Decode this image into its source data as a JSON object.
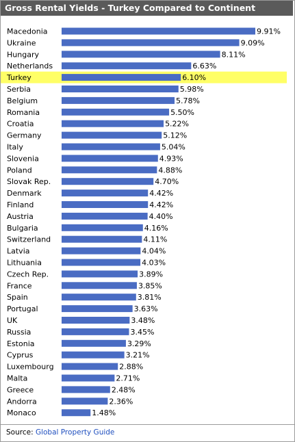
{
  "chart_data": {
    "type": "bar",
    "orientation": "horizontal",
    "title": "Gross Rental Yields - Turkey Compared to Continent",
    "highlight_category": "Turkey",
    "colors": {
      "bar": "#4a6cc3",
      "highlight": "#ffff66",
      "title_bg": "#5a5a5a"
    },
    "categories": [
      "Macedonia",
      "Ukraine",
      "Hungary",
      "Netherlands",
      "Turkey",
      "Serbia",
      "Belgium",
      "Romania",
      "Croatia",
      "Germany",
      "Italy",
      "Slovenia",
      "Poland",
      "Slovak Rep.",
      "Denmark",
      "Finland",
      "Austria",
      "Bulgaria",
      "Switzerland",
      "Latvia",
      "Lithuania",
      "Czech Rep.",
      "France",
      "Spain",
      "Portugal",
      "UK",
      "Russia",
      "Estonia",
      "Cyprus",
      "Luxembourg",
      "Malta",
      "Greece",
      "Andorra",
      "Monaco"
    ],
    "values": [
      9.91,
      9.09,
      8.11,
      6.63,
      6.1,
      5.98,
      5.78,
      5.5,
      5.22,
      5.12,
      5.04,
      4.93,
      4.88,
      4.7,
      4.42,
      4.42,
      4.4,
      4.16,
      4.11,
      4.04,
      4.03,
      3.89,
      3.85,
      3.81,
      3.63,
      3.48,
      3.45,
      3.29,
      3.21,
      2.88,
      2.71,
      2.48,
      2.36,
      1.48
    ],
    "labels": [
      "9.91%",
      "9.09%",
      "8.11%",
      "6.63%",
      "6.10%",
      "5.98%",
      "5.78%",
      "5.50%",
      "5.22%",
      "5.12%",
      "5.04%",
      "4.93%",
      "4.88%",
      "4.70%",
      "4.42%",
      "4.42%",
      "4.40%",
      "4.16%",
      "4.11%",
      "4.04%",
      "4.03%",
      "3.89%",
      "3.85%",
      "3.81%",
      "3.63%",
      "3.48%",
      "3.45%",
      "3.29%",
      "3.21%",
      "2.88%",
      "2.71%",
      "2.48%",
      "2.36%",
      "1.48%"
    ],
    "xlim": [
      0,
      10
    ],
    "grid": false,
    "legend": "none"
  },
  "footer": {
    "source_label": "Source: ",
    "source_link": "Global Property Guide"
  }
}
